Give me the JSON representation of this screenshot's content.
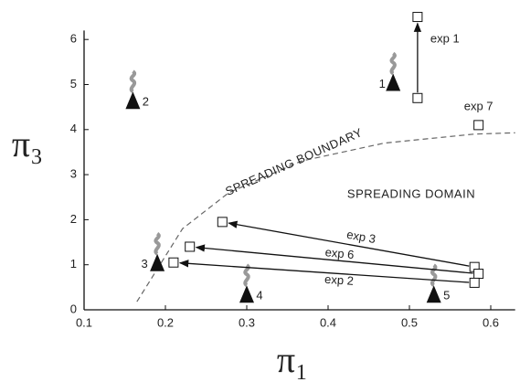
{
  "chart_data": {
    "type": "scatter",
    "xlabel": "π₁",
    "ylabel": "π₃",
    "xlim": [
      0.1,
      0.63
    ],
    "ylim": [
      0,
      6.2
    ],
    "xticks": [
      {
        "value": 0.1,
        "label": "0.1"
      },
      {
        "value": 0.2,
        "label": "0.2"
      },
      {
        "value": 0.3,
        "label": "0.3"
      },
      {
        "value": 0.4,
        "label": "0.4"
      },
      {
        "value": 0.5,
        "label": "0.5"
      },
      {
        "value": 0.6,
        "label": "0.6"
      }
    ],
    "yticks": [
      0,
      1,
      2,
      3,
      4,
      5,
      6
    ],
    "vents": {
      "names": [
        "1",
        "2",
        "3",
        "4",
        "5"
      ],
      "x": [
        0.48,
        0.16,
        0.19,
        0.3,
        0.53
      ],
      "y": [
        5.0,
        4.6,
        1.0,
        0.3,
        0.3
      ]
    },
    "experiments": [
      {
        "name": "exp 1",
        "x": [
          0.51,
          0.51
        ],
        "y": [
          4.7,
          6.5
        ]
      },
      {
        "name": "exp 7",
        "x": [
          0.585
        ],
        "y": [
          4.1
        ]
      },
      {
        "name": "exp 3",
        "x": [
          0.58,
          0.27
        ],
        "y": [
          0.95,
          1.95
        ]
      },
      {
        "name": "exp 6",
        "x": [
          0.585,
          0.23
        ],
        "y": [
          0.8,
          1.4
        ]
      },
      {
        "name": "exp 2",
        "x": [
          0.58,
          0.21
        ],
        "y": [
          0.6,
          1.05
        ]
      }
    ],
    "boundary": {
      "label": "SPREADING  BOUNDARY",
      "x": [
        0.165,
        0.221,
        0.278,
        0.367,
        0.469,
        0.58,
        0.63
      ],
      "y": [
        0.18,
        1.8,
        2.6,
        3.3,
        3.7,
        3.9,
        3.93
      ]
    },
    "domain_label": "SPREADING  DOMAIN"
  }
}
